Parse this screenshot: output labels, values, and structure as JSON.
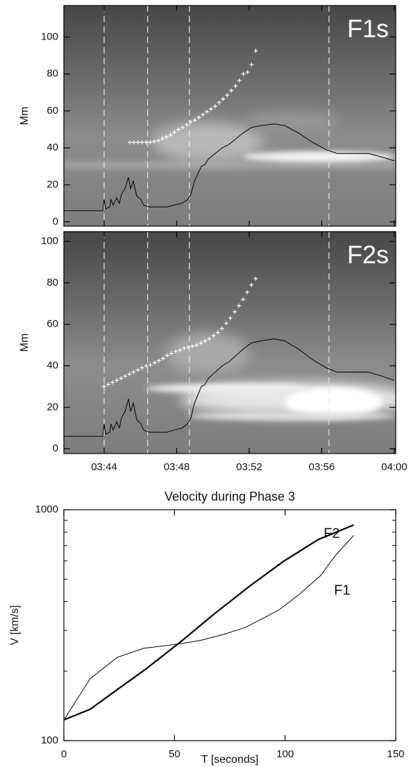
{
  "chart_data": [
    {
      "type": "line",
      "label": "F1s",
      "y_label": "Mm",
      "xlim": [
        41.78,
        60.08
      ],
      "ylim": [
        -2.3,
        117
      ],
      "xticks": [
        44,
        48,
        52,
        56,
        60
      ],
      "yticks": [
        0,
        20,
        40,
        60,
        80,
        100
      ],
      "vlines": [
        44.0,
        46.4,
        48.7,
        56.4
      ],
      "series": [
        {
          "style": "line",
          "color": "#000000",
          "x": [
            41.8,
            43.92,
            44.0,
            44.08,
            44.31,
            44.38,
            44.5,
            44.69,
            44.84,
            44.96,
            45.15,
            45.34,
            45.46,
            45.61,
            45.8,
            46.03,
            46.18,
            46.49,
            47.45,
            48.29,
            48.6,
            48.79,
            48.98,
            49.17,
            49.36,
            49.56,
            49.75,
            50.13,
            50.51,
            50.9,
            51.28,
            51.66,
            52.12,
            52.62,
            53.39,
            53.96,
            54.73,
            55.49,
            56.26,
            56.84,
            57.79,
            58.56,
            59.33,
            60.0
          ],
          "values": [
            6,
            6,
            12,
            7,
            8,
            12,
            9,
            13,
            10,
            15,
            18,
            24,
            18,
            22,
            14,
            12,
            9,
            8,
            8,
            10,
            12,
            15,
            22,
            26,
            30,
            31,
            34,
            37,
            40,
            42,
            45,
            48,
            51,
            52,
            53,
            52,
            48,
            43,
            39,
            37,
            37,
            37,
            35,
            33
          ]
        },
        {
          "style": "cross",
          "color": "#ffffff",
          "x": [
            45.42,
            45.64,
            45.87,
            46.09,
            46.31,
            46.54,
            46.76,
            46.99,
            47.21,
            47.43,
            47.66,
            47.88,
            48.1,
            48.33,
            48.55,
            48.78,
            49.0,
            49.22,
            49.45,
            49.67,
            49.89,
            50.12,
            50.34,
            50.56,
            50.79,
            51.01,
            51.24,
            51.46,
            51.68,
            51.91,
            52.13,
            52.36
          ],
          "values": [
            43,
            43,
            43,
            43,
            43,
            43,
            43.5,
            44,
            45,
            46,
            47,
            48.5,
            50,
            51,
            52.5,
            54,
            55,
            56.5,
            58,
            59.5,
            61,
            62.5,
            64.5,
            66.5,
            68.5,
            71,
            73.5,
            76.5,
            80,
            81,
            85,
            92.5
          ]
        }
      ]
    },
    {
      "type": "line",
      "label": "F2s",
      "y_label": "Mm",
      "xlim": [
        41.78,
        60.08
      ],
      "ylim": [
        -2.3,
        104.7
      ],
      "xticks": [
        {
          "value": 44,
          "label": "03:44"
        },
        {
          "value": 48,
          "label": "03:48"
        },
        {
          "value": 52,
          "label": "03:52"
        },
        {
          "value": 56,
          "label": "03:56"
        },
        {
          "value": 60,
          "label": "04:00"
        }
      ],
      "yticks": [
        0,
        20,
        40,
        60,
        80,
        100
      ],
      "vlines": [
        44.0,
        46.4,
        48.7,
        56.4
      ],
      "series": [
        {
          "style": "line",
          "color": "#000000",
          "x": [
            41.8,
            43.92,
            44.0,
            44.08,
            44.31,
            44.38,
            44.5,
            44.69,
            44.84,
            44.96,
            45.15,
            45.34,
            45.46,
            45.61,
            45.8,
            46.03,
            46.18,
            46.49,
            47.45,
            48.29,
            48.6,
            48.79,
            48.98,
            49.17,
            49.36,
            49.56,
            49.75,
            50.13,
            50.51,
            50.9,
            51.28,
            51.66,
            52.12,
            52.62,
            53.39,
            53.96,
            54.73,
            55.49,
            56.26,
            56.84,
            57.79,
            58.56,
            59.33,
            60.0
          ],
          "values": [
            6,
            6,
            12,
            7,
            8,
            12,
            9,
            13,
            10,
            15,
            18,
            24,
            18,
            22,
            14,
            12,
            9,
            8,
            8,
            10,
            12,
            15,
            22,
            26,
            30,
            31,
            34,
            37,
            40,
            42,
            45,
            48,
            51,
            52,
            53,
            52,
            48,
            43,
            39,
            37,
            37,
            37,
            35,
            33
          ]
        },
        {
          "style": "cross",
          "color": "#ffffff",
          "x": [
            44.0,
            44.23,
            44.46,
            44.7,
            44.93,
            45.16,
            45.39,
            45.62,
            45.86,
            46.09,
            46.32,
            46.55,
            46.79,
            47.02,
            47.25,
            47.48,
            47.71,
            47.95,
            48.18,
            48.41,
            48.64,
            48.87,
            49.11,
            49.34,
            49.57,
            49.8,
            50.04,
            50.27,
            50.5,
            50.73,
            50.96,
            51.2,
            51.43,
            51.66,
            51.89,
            52.12,
            52.36
          ],
          "values": [
            30,
            31,
            32,
            33,
            34,
            35,
            36,
            37,
            38,
            39,
            40,
            40.5,
            41.5,
            42.5,
            43.5,
            45,
            46,
            47,
            47.5,
            48.5,
            49,
            49.5,
            50,
            51,
            52,
            53,
            54.5,
            56,
            58,
            60.5,
            63,
            66,
            69,
            72,
            75.5,
            79,
            82
          ]
        }
      ]
    },
    {
      "type": "line",
      "title": "Velocity during Phase 3",
      "x_label": "T [seconds]",
      "y_label": "V [km/s]",
      "ylog": true,
      "xlim": [
        0,
        150
      ],
      "ylim": [
        100,
        1000
      ],
      "xticks": [
        0,
        50,
        100,
        150
      ],
      "yticks": [
        100,
        1000
      ],
      "yminorticks": [
        200,
        300,
        400,
        500,
        600,
        700,
        800,
        900
      ],
      "series": [
        {
          "name": "F1",
          "style": "line",
          "color": "#000000",
          "width": 1,
          "x": [
            0,
            12,
            24,
            36,
            53,
            62,
            72,
            82,
            97,
            106,
            116,
            123,
            131
          ],
          "values": [
            123,
            186,
            229,
            251,
            263,
            272,
            288,
            309,
            367,
            427,
            518,
            638,
            774
          ]
        },
        {
          "name": "F2",
          "style": "line",
          "color": "#000000",
          "width": 2.2,
          "x": [
            0,
            12,
            24,
            37,
            53,
            68,
            84,
            99,
            115,
            131
          ],
          "values": [
            123,
            137,
            166,
            204,
            269,
            354,
            467,
            595,
            743,
            859
          ]
        }
      ]
    }
  ]
}
